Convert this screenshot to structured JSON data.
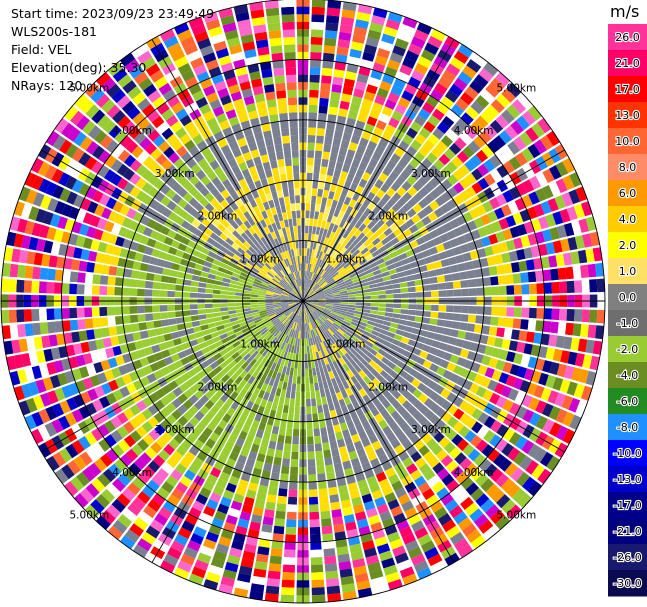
{
  "header": {
    "start_time": "Start time: 2023/09/23 23:49:49",
    "station": "WLS200s-181",
    "field": "Field: VEL",
    "elevation": "Elevation(deg): 35.30",
    "nrays": "NRays: 120"
  },
  "chart_data": {
    "type": "heatmap",
    "subtype": "radar-ppi",
    "field": "VEL",
    "elevation_deg": 35.3,
    "n_rays": 120,
    "ranges_km": [
      1,
      2,
      3,
      4,
      5
    ],
    "ring_labels_visible": [
      "1.00km",
      "2.00km",
      "3.00km",
      "4.00km",
      "5.00km"
    ],
    "colorbar": {
      "unit": "m/s",
      "labels": [
        "26.0",
        "21.0",
        "17.0",
        "13.0",
        "10.0",
        "8.0",
        "6.0",
        "4.0",
        "2.0",
        "1.0",
        "0.0",
        "-1.0",
        "-2.0",
        "-4.0",
        "-6.0",
        "-8.0",
        "-10.0",
        "-13.0",
        "-17.0",
        "-21.0",
        "-26.0",
        "-30.0"
      ],
      "colors": [
        "#ff3399",
        "#ff0066",
        "#ff0000",
        "#ff3300",
        "#ff6633",
        "#ff8c66",
        "#ff9900",
        "#ffcc00",
        "#ffff00",
        "#ffe066",
        "#808080",
        "#6e6e6e",
        "#99cc33",
        "#6b8e23",
        "#228b22",
        "#1e90ff",
        "#0000ff",
        "#0000cd",
        "#00008b",
        "#000080",
        "#191970",
        "#0a0a50"
      ]
    },
    "near_range_pattern": "mostly near-zero velocities (gray/yellow) with negative (green) in south-west sector; outer ranges noisy"
  }
}
